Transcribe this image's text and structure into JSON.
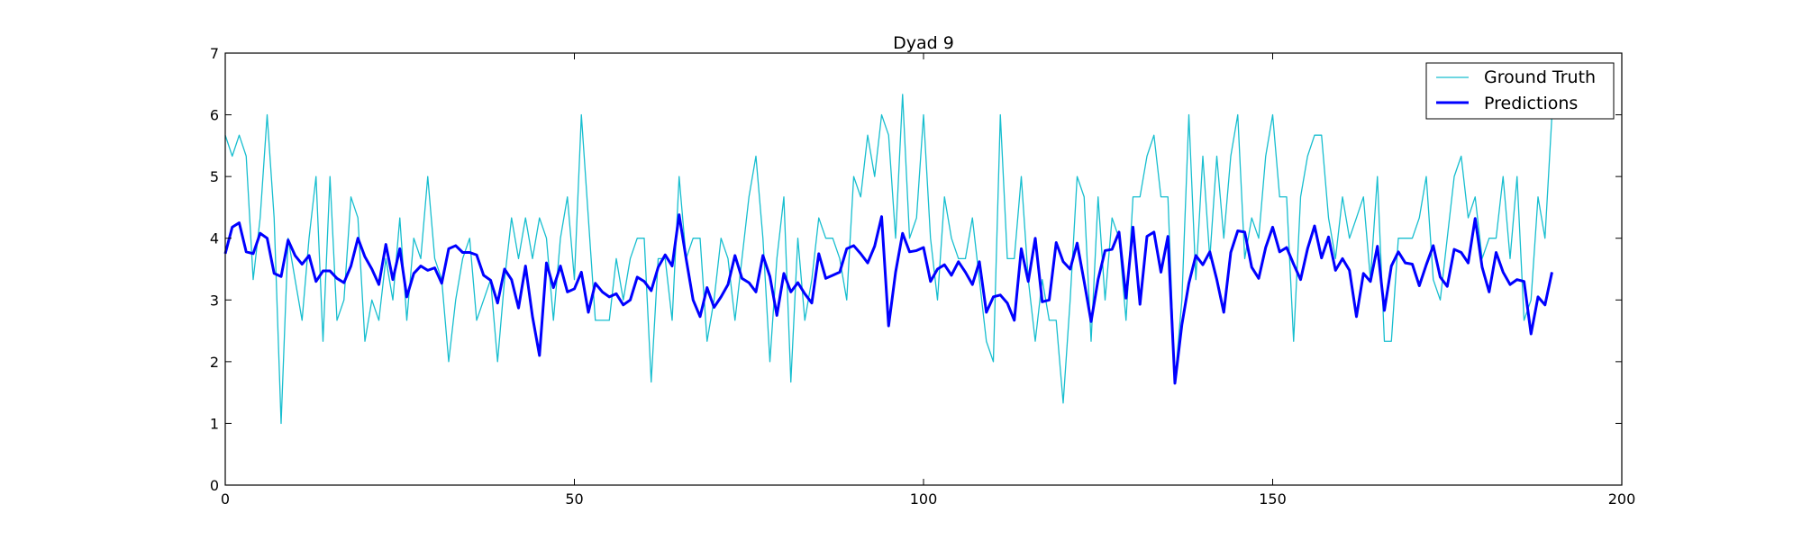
{
  "chart_data": {
    "type": "line",
    "title": "Dyad 9",
    "xlabel": "",
    "ylabel": "",
    "xlim": [
      0,
      200
    ],
    "ylim": [
      0,
      7
    ],
    "xticks": [
      0,
      50,
      100,
      150,
      200
    ],
    "yticks": [
      0,
      1,
      2,
      3,
      4,
      5,
      6,
      7
    ],
    "xtick_labels": [
      "0",
      "50",
      "100",
      "150",
      "200"
    ],
    "ytick_labels": [
      "0",
      "1",
      "2",
      "3",
      "4",
      "5",
      "6",
      "7"
    ],
    "grid": false,
    "legend_position": "top-right",
    "series": [
      {
        "name": "Ground Truth",
        "color": "#17becf",
        "linewidth": "thin",
        "values": [
          5.67,
          5.33,
          5.67,
          5.33,
          3.33,
          4.33,
          6.0,
          4.33,
          1.0,
          4.0,
          3.33,
          2.67,
          4.0,
          5.0,
          2.33,
          5.0,
          2.67,
          3.0,
          4.67,
          4.33,
          2.33,
          3.0,
          2.67,
          3.67,
          3.0,
          4.33,
          2.67,
          4.0,
          3.67,
          5.0,
          3.67,
          3.33,
          2.0,
          3.0,
          3.67,
          4.0,
          2.67,
          3.0,
          3.33,
          2.0,
          3.33,
          4.33,
          3.67,
          4.33,
          3.67,
          4.33,
          4.0,
          2.67,
          4.0,
          4.67,
          3.33,
          6.0,
          4.33,
          2.67,
          2.67,
          2.67,
          3.67,
          3.0,
          3.67,
          4.0,
          4.0,
          1.67,
          3.67,
          3.67,
          2.67,
          5.0,
          3.67,
          4.0,
          4.0,
          2.33,
          3.0,
          4.0,
          3.67,
          2.67,
          3.67,
          4.67,
          5.33,
          4.0,
          2.0,
          3.67,
          4.67,
          1.67,
          4.0,
          2.67,
          3.33,
          4.33,
          4.0,
          4.0,
          3.67,
          3.0,
          5.0,
          4.67,
          5.67,
          5.0,
          6.0,
          5.67,
          4.0,
          6.33,
          4.0,
          4.33,
          6.0,
          4.0,
          3.0,
          4.67,
          4.0,
          3.67,
          3.67,
          4.33,
          3.33,
          2.33,
          2.0,
          6.0,
          3.67,
          3.67,
          5.0,
          3.33,
          2.33,
          3.33,
          2.67,
          2.67,
          1.33,
          3.0,
          5.0,
          4.67,
          2.33,
          4.67,
          3.0,
          4.33,
          4.0,
          2.67,
          4.67,
          4.67,
          5.33,
          5.67,
          4.67,
          4.67,
          1.67,
          3.0,
          6.0,
          3.33,
          5.33,
          3.67,
          5.33,
          4.0,
          5.33,
          6.0,
          3.67,
          4.33,
          4.0,
          5.33,
          6.0,
          4.67,
          4.67,
          2.33,
          4.67,
          5.33,
          5.67,
          5.67,
          4.33,
          3.67,
          4.67,
          4.0,
          4.33,
          4.67,
          3.33,
          5.0,
          2.33,
          2.33,
          4.0,
          4.0,
          4.0,
          4.33,
          5.0,
          3.33,
          3.0,
          4.0,
          5.0,
          5.33,
          4.33,
          4.67,
          3.67,
          4.0,
          4.0,
          5.0,
          3.67,
          5.0,
          2.67,
          3.0,
          4.67,
          4.0,
          6.0
        ]
      },
      {
        "name": "Predictions",
        "color": "#0000ff",
        "linewidth": "thick",
        "values": [
          3.75,
          4.18,
          4.25,
          3.78,
          3.75,
          4.08,
          4.0,
          3.43,
          3.38,
          3.97,
          3.72,
          3.58,
          3.72,
          3.3,
          3.47,
          3.47,
          3.35,
          3.28,
          3.55,
          4.0,
          3.7,
          3.5,
          3.25,
          3.9,
          3.33,
          3.83,
          3.05,
          3.43,
          3.55,
          3.48,
          3.52,
          3.27,
          3.83,
          3.88,
          3.77,
          3.77,
          3.73,
          3.4,
          3.32,
          2.95,
          3.5,
          3.33,
          2.87,
          3.55,
          2.73,
          2.1,
          3.6,
          3.2,
          3.55,
          3.13,
          3.18,
          3.45,
          2.8,
          3.27,
          3.13,
          3.05,
          3.1,
          2.92,
          3.0,
          3.37,
          3.3,
          3.15,
          3.53,
          3.73,
          3.55,
          4.38,
          3.67,
          3.0,
          2.73,
          3.2,
          2.88,
          3.05,
          3.25,
          3.72,
          3.35,
          3.28,
          3.13,
          3.72,
          3.38,
          2.75,
          3.43,
          3.13,
          3.28,
          3.1,
          2.95,
          3.75,
          3.35,
          3.4,
          3.45,
          3.83,
          3.88,
          3.75,
          3.6,
          3.87,
          4.35,
          2.58,
          3.45,
          4.08,
          3.78,
          3.8,
          3.85,
          3.3,
          3.5,
          3.57,
          3.4,
          3.62,
          3.45,
          3.25,
          3.62,
          2.8,
          3.05,
          3.08,
          2.95,
          2.67,
          3.83,
          3.3,
          4.0,
          2.97,
          3.0,
          3.93,
          3.62,
          3.5,
          3.92,
          3.3,
          2.65,
          3.33,
          3.8,
          3.82,
          4.1,
          3.03,
          4.18,
          2.93,
          4.03,
          4.1,
          3.45,
          4.03,
          1.65,
          2.6,
          3.27,
          3.72,
          3.57,
          3.78,
          3.33,
          2.8,
          3.77,
          4.12,
          4.1,
          3.53,
          3.35,
          3.85,
          4.18,
          3.78,
          3.85,
          3.58,
          3.33,
          3.83,
          4.2,
          3.68,
          4.02,
          3.48,
          3.67,
          3.48,
          2.73,
          3.43,
          3.3,
          3.87,
          2.83,
          3.55,
          3.78,
          3.6,
          3.58,
          3.23,
          3.57,
          3.88,
          3.37,
          3.22,
          3.82,
          3.77,
          3.6,
          4.32,
          3.53,
          3.13,
          3.77,
          3.45,
          3.25,
          3.33,
          3.3,
          2.45,
          3.05,
          2.92,
          3.45
        ]
      }
    ]
  }
}
